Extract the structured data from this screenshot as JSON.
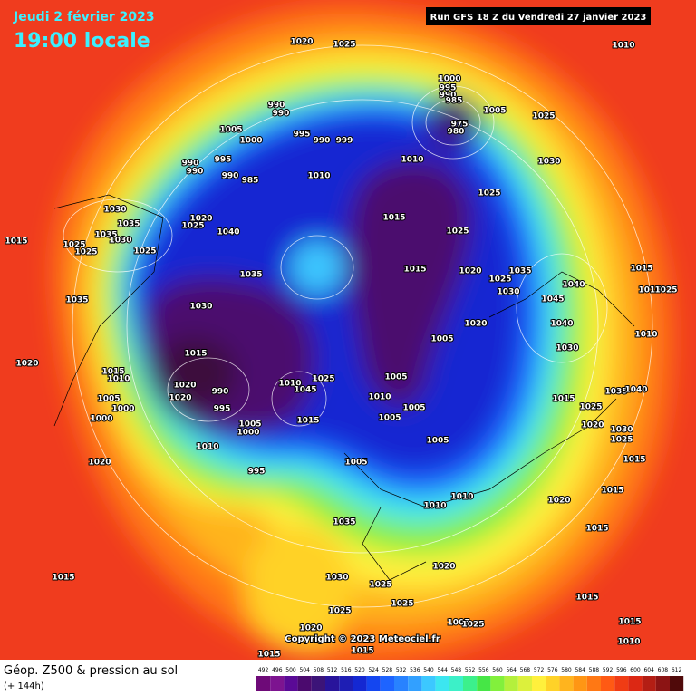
{
  "header": {
    "date": "Jeudi 2 février 2023",
    "time": "19:00 locale",
    "run": "Run GFS 18 Z du Vendredi 27 janvier 2023"
  },
  "footer": {
    "title": "Géop. Z500 & pression au sol",
    "lead": "(+ 144h)",
    "copyright": "Copyright © 2023 Meteociel.fr"
  },
  "colorbar": {
    "levels": [
      492,
      496,
      500,
      504,
      508,
      512,
      516,
      520,
      524,
      528,
      532,
      536,
      540,
      544,
      548,
      552,
      556,
      560,
      564,
      568,
      572,
      576,
      580,
      584,
      588,
      592,
      596,
      600,
      604,
      608,
      612
    ],
    "colors": [
      "#6e0a78",
      "#7d1490",
      "#5a0a96",
      "#4b0a6e",
      "#3c1478",
      "#28149b",
      "#1e1eb4",
      "#1428d2",
      "#1446f0",
      "#1e64ff",
      "#2882ff",
      "#32a0ff",
      "#3cc8ff",
      "#3ce6f0",
      "#3cf0c8",
      "#3cf08c",
      "#46e646",
      "#82f03c",
      "#b4f03c",
      "#dcf03c",
      "#fff03c",
      "#ffd228",
      "#ffb41e",
      "#ff9614",
      "#ff7814",
      "#ff5a14",
      "#f03c14",
      "#dc2814",
      "#b41e14",
      "#8c1414",
      "#500a0a"
    ]
  },
  "isobar_labels": [
    "1020",
    "1025",
    "1010",
    "1000",
    "995",
    "990",
    "985",
    "975",
    "980",
    "1005",
    "1025",
    "990",
    "990",
    "1005",
    "1000",
    "995",
    "990",
    "999",
    "1010",
    "1030",
    "990",
    "990",
    "995",
    "990",
    "985",
    "1010",
    "1025",
    "1030",
    "1020",
    "1035",
    "1025",
    "1035",
    "1040",
    "1015",
    "1025",
    "1015",
    "1025",
    "1030",
    "1025",
    "1025",
    "1015",
    "1020",
    "1035",
    "1025",
    "1015",
    "1035",
    "1030",
    "1040",
    "1045",
    "1035",
    "1030",
    "1015",
    "1025",
    "1020",
    "1040",
    "1005",
    "1010",
    "1015",
    "1030",
    "1020",
    "1015",
    "1010",
    "1020",
    "1025",
    "1005",
    "1010",
    "1045",
    "1015",
    "1020",
    "1005",
    "990",
    "1010",
    "1035",
    "1040",
    "1005",
    "1025",
    "1000",
    "995",
    "1005",
    "1015",
    "1000",
    "1005",
    "1000",
    "1020",
    "1030",
    "1025",
    "1010",
    "1005",
    "1015",
    "1020",
    "1005",
    "995",
    "1010",
    "1020",
    "1010",
    "1015",
    "1035",
    "1015",
    "1020",
    "1030",
    "1015",
    "1025",
    "1025",
    "1025",
    "1015",
    "1005",
    "1025",
    "1015",
    "1020",
    "1015",
    "1015",
    "1010"
  ]
}
